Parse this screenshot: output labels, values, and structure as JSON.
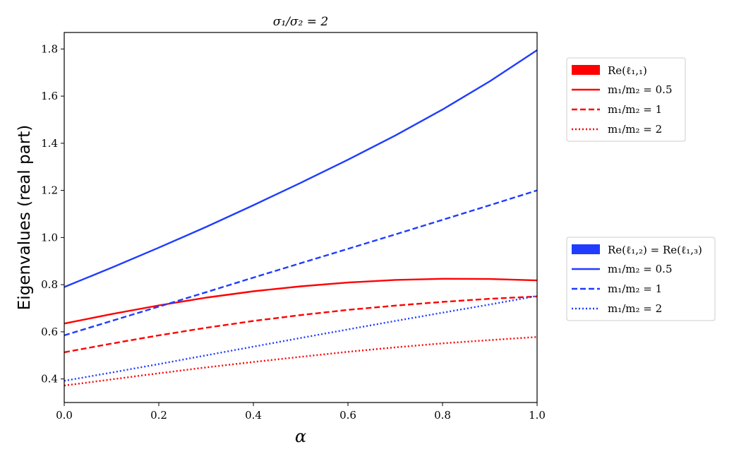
{
  "chart_data": {
    "type": "line",
    "title": "σ₁/σ₂ = 2",
    "xlabel": "α",
    "ylabel": "Eigenvalues (real part)",
    "xlim": [
      0.0,
      1.0
    ],
    "ylim": [
      0.3,
      1.87
    ],
    "xticks": [
      0.0,
      0.2,
      0.4,
      0.6,
      0.8,
      1.0
    ],
    "xtick_labels": [
      "0.0",
      "0.2",
      "0.4",
      "0.6",
      "0.8",
      "1.0"
    ],
    "yticks": [
      0.4,
      0.6,
      0.8,
      1.0,
      1.2,
      1.4,
      1.6,
      1.8
    ],
    "ytick_labels": [
      "0.4",
      "0.6",
      "0.8",
      "1.0",
      "1.2",
      "1.4",
      "1.6",
      "1.8"
    ],
    "grid": false,
    "x": [
      0.0,
      0.1,
      0.2,
      0.3,
      0.4,
      0.5,
      0.6,
      0.7,
      0.8,
      0.9,
      1.0
    ],
    "series": [
      {
        "name": "m₁/m₂ = 0.5",
        "group": "Re(ℓ₁,₁)",
        "color": "#ff0000",
        "dash": "solid",
        "values": [
          0.635,
          0.675,
          0.712,
          0.745,
          0.772,
          0.793,
          0.809,
          0.82,
          0.825,
          0.824,
          0.818
        ]
      },
      {
        "name": "m₁/m₂ = 1",
        "group": "Re(ℓ₁,₁)",
        "color": "#ff0000",
        "dash": "dashed",
        "values": [
          0.513,
          0.55,
          0.585,
          0.617,
          0.646,
          0.671,
          0.693,
          0.711,
          0.727,
          0.74,
          0.75
        ]
      },
      {
        "name": "m₁/m₂ = 2",
        "group": "Re(ℓ₁,₁)",
        "color": "#ff0000",
        "dash": "dotted",
        "values": [
          0.372,
          0.398,
          0.424,
          0.449,
          0.472,
          0.494,
          0.515,
          0.534,
          0.551,
          0.565,
          0.578
        ]
      },
      {
        "name": "m₁/m₂ = 0.5",
        "group": "Re(ℓ₁,₂) = Re(ℓ₁,₃)",
        "color": "#1f3cff",
        "dash": "solid",
        "values": [
          0.79,
          0.872,
          0.957,
          1.045,
          1.137,
          1.232,
          1.33,
          1.433,
          1.543,
          1.663,
          1.795
        ]
      },
      {
        "name": "m₁/m₂ = 1",
        "group": "Re(ℓ₁,₂) = Re(ℓ₁,₃)",
        "color": "#1f3cff",
        "dash": "dashed",
        "values": [
          0.585,
          0.646,
          0.707,
          0.768,
          0.83,
          0.891,
          0.952,
          1.013,
          1.075,
          1.137,
          1.2
        ]
      },
      {
        "name": "m₁/m₂ = 2",
        "group": "Re(ℓ₁,₂) = Re(ℓ₁,₃)",
        "color": "#1f3cff",
        "dash": "dotted",
        "values": [
          0.392,
          0.427,
          0.463,
          0.5,
          0.537,
          0.574,
          0.61,
          0.646,
          0.681,
          0.716,
          0.752
        ]
      }
    ],
    "legends": [
      {
        "placement": "upper-right-outside",
        "header": "Re(ℓ₁,₁)",
        "header_color": "#ff0000",
        "entries": [
          "m₁/m₂ = 0.5",
          "m₁/m₂ = 1",
          "m₁/m₂ = 2"
        ]
      },
      {
        "placement": "middle-right-outside",
        "header": "Re(ℓ₁,₂) = Re(ℓ₁,₃)",
        "header_color": "#1f3cff",
        "entries": [
          "m₁/m₂ = 0.5",
          "m₁/m₂ = 1",
          "m₁/m₂ = 2"
        ]
      }
    ]
  }
}
